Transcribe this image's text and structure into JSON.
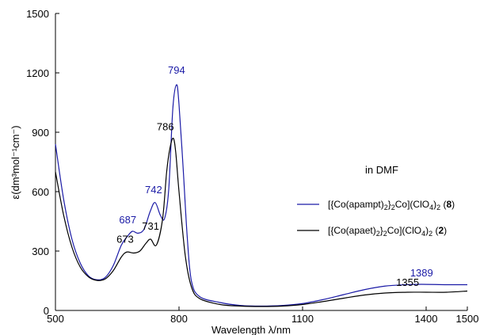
{
  "chart_data": {
    "type": "line",
    "xlabel": "Wavelength λ/nm",
    "ylabel": "ε(dm³mol⁻¹cm⁻)",
    "xlim": [
      500,
      1500
    ],
    "ylim": [
      0,
      1500
    ],
    "x_ticks": [
      500,
      800,
      1100,
      1400,
      1500
    ],
    "y_ticks": [
      0,
      300,
      600,
      900,
      1200,
      1500
    ],
    "grid": false,
    "legend_position": "right",
    "inset_note": "in DMF",
    "series": [
      {
        "name": "[{Co(apampt)2}2Co](ClO4)2 (8)",
        "legend": {
          "pre": "[{Co(apampt)",
          "s1": "2",
          "mid": "}",
          "s2": "2",
          "post": "Co](ClO",
          "s3": "4",
          "end": ")",
          "s4": "2",
          "tail": " (",
          "bold": "8",
          "close": ")"
        },
        "color": "#1a1aa6",
        "x": [
          500,
          520,
          540,
          560,
          580,
          600,
          620,
          640,
          660,
          675,
          687,
          700,
          715,
          730,
          742,
          755,
          765,
          775,
          785,
          794,
          800,
          810,
          820,
          830,
          850,
          900,
          950,
          1000,
          1050,
          1100,
          1150,
          1200,
          1250,
          1300,
          1350,
          1389,
          1450,
          1500
        ],
        "y": [
          840,
          560,
          360,
          240,
          175,
          155,
          165,
          225,
          330,
          375,
          400,
          390,
          410,
          500,
          545,
          480,
          465,
          610,
          1020,
          1140,
          1040,
          720,
          370,
          150,
          70,
          40,
          25,
          22,
          25,
          35,
          55,
          80,
          105,
          123,
          130,
          132,
          130,
          130
        ]
      },
      {
        "name": "[{Co(apaet)2}2Co](ClO4)2 (2)",
        "legend": {
          "pre": "[{Co(apaet)",
          "s1": "2",
          "mid": "}",
          "s2": "2",
          "post": "Co](ClO",
          "s3": "4",
          "end": ")",
          "s4": "2",
          "tail": " (",
          "bold": "2",
          "close": ")"
        },
        "color": "#000000",
        "x": [
          500,
          520,
          540,
          560,
          580,
          600,
          620,
          640,
          660,
          673,
          690,
          705,
          720,
          731,
          745,
          760,
          770,
          778,
          786,
          792,
          800,
          815,
          830,
          850,
          900,
          950,
          1000,
          1050,
          1100,
          1150,
          1200,
          1250,
          1300,
          1355,
          1400,
          1450,
          1500
        ],
        "y": [
          700,
          480,
          320,
          220,
          170,
          152,
          158,
          200,
          270,
          295,
          290,
          300,
          340,
          360,
          330,
          460,
          700,
          820,
          870,
          800,
          600,
          280,
          120,
          60,
          30,
          22,
          20,
          22,
          30,
          45,
          62,
          78,
          88,
          92,
          92,
          92,
          98
        ]
      }
    ],
    "annotations": [
      {
        "text": "794",
        "x": 794,
        "y": 1140,
        "color": "#1a1aa6",
        "series": 0
      },
      {
        "text": "786",
        "x": 786,
        "y": 870,
        "color": "#000000",
        "series": 1
      },
      {
        "text": "742",
        "x": 742,
        "y": 545,
        "color": "#1a1aa6",
        "series": 0
      },
      {
        "text": "687",
        "x": 687,
        "y": 400,
        "color": "#1a1aa6",
        "series": 0
      },
      {
        "text": "731",
        "x": 731,
        "y": 360,
        "color": "#000000",
        "series": 1
      },
      {
        "text": "673",
        "x": 673,
        "y": 295,
        "color": "#000000",
        "series": 1
      },
      {
        "text": "1355",
        "x": 1355,
        "y": 92,
        "color": "#000000",
        "series": 1
      },
      {
        "text": "1389",
        "x": 1389,
        "y": 132,
        "color": "#1a1aa6",
        "series": 0
      }
    ]
  }
}
